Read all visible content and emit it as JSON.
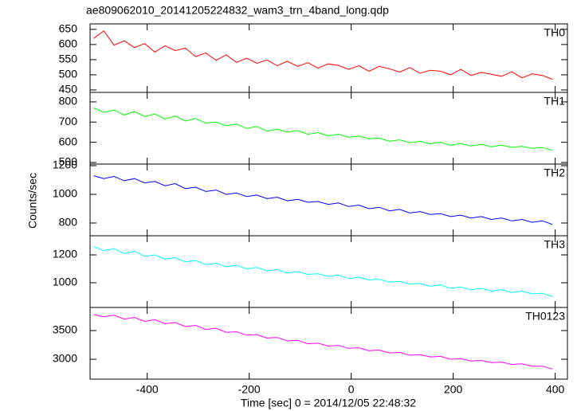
{
  "chart_data": {
    "type": "line",
    "title": "ae809062010_20141205224832_wam3_trn_4band_long.qdp",
    "x_label": "Time [sec] 0 = 2014/12/05 22:48:32",
    "y_label": "Counts/sec",
    "x": [
      -505,
      -485,
      -465,
      -445,
      -425,
      -405,
      -385,
      -365,
      -345,
      -325,
      -305,
      -285,
      -265,
      -245,
      -225,
      -205,
      -185,
      -165,
      -145,
      -125,
      -105,
      -85,
      -65,
      -45,
      -25,
      -5,
      15,
      35,
      55,
      75,
      95,
      115,
      135,
      155,
      175,
      195,
      215,
      235,
      255,
      275,
      295,
      315,
      335,
      355,
      375,
      395
    ],
    "xlim": [
      -512,
      424
    ],
    "xticks": [
      -400,
      -200,
      0,
      200,
      400
    ],
    "panels": [
      {
        "series": [
          {
            "name": "TH0",
            "color": "#ff0000",
            "values": [
              620,
              645,
              598,
              612,
              590,
              603,
              575,
              596,
              580,
              588,
              560,
              572,
              548,
              566,
              541,
              555,
              538,
              549,
              530,
              545,
              528,
              540,
              522,
              536,
              531,
              518,
              530,
              512,
              528,
              520,
              509,
              524,
              505,
              515,
              512,
              500,
              518,
              498,
              508,
              502,
              495,
              510,
              490,
              503,
              498,
              485
            ]
          }
        ],
        "ylim": [
          442,
          668
        ],
        "yticks": [
          450,
          500,
          550,
          600,
          650
        ]
      },
      {
        "series": [
          {
            "name": "TH1",
            "color": "#00ff00",
            "values": [
              770,
              748,
              760,
              735,
              752,
              728,
              740,
              715,
              730,
              705,
              718,
              695,
              700,
              682,
              690,
              668,
              678,
              655,
              665,
              650,
              658,
              640,
              648,
              632,
              640,
              625,
              630,
              618,
              620,
              605,
              612,
              598,
              605,
              592,
              600,
              585,
              594,
              582,
              590,
              578,
              586,
              575,
              580,
              570,
              574,
              560
            ]
          }
        ],
        "ylim": [
          492,
          847
        ],
        "yticks": [
          500,
          600,
          700,
          800
        ]
      },
      {
        "series": [
          {
            "name": "TH2",
            "color": "#0000ff",
            "values": [
              1130,
              1110,
              1125,
              1095,
              1110,
              1080,
              1090,
              1060,
              1075,
              1040,
              1050,
              1020,
              1030,
              1000,
              1010,
              985,
              995,
              970,
              980,
              955,
              965,
              945,
              950,
              930,
              940,
              915,
              925,
              900,
              910,
              885,
              895,
              870,
              880,
              860,
              865,
              845,
              855,
              835,
              845,
              825,
              835,
              815,
              825,
              805,
              815,
              790
            ]
          }
        ],
        "ylim": [
          711,
          1211
        ],
        "yticks": [
          800,
          1000,
          1200
        ]
      },
      {
        "series": [
          {
            "name": "TH3",
            "color": "#00ffff",
            "values": [
              1260,
              1230,
              1245,
              1210,
              1225,
              1190,
              1200,
              1170,
              1180,
              1150,
              1160,
              1130,
              1140,
              1115,
              1125,
              1100,
              1110,
              1085,
              1095,
              1070,
              1080,
              1060,
              1065,
              1045,
              1055,
              1030,
              1040,
              1020,
              1025,
              1005,
              1010,
              990,
              995,
              975,
              985,
              960,
              970,
              950,
              960,
              940,
              950,
              930,
              940,
              920,
              925,
              900
            ]
          }
        ],
        "ylim": [
          823,
          1337
        ],
        "yticks": [
          1000,
          1200
        ]
      },
      {
        "series": [
          {
            "name": "TH0123",
            "color": "#ff00ff",
            "values": [
              3780,
              3740,
              3770,
              3700,
              3730,
              3660,
              3690,
              3620,
              3640,
              3570,
              3590,
              3520,
              3540,
              3470,
              3480,
              3420,
              3430,
              3370,
              3380,
              3320,
              3330,
              3270,
              3280,
              3230,
              3240,
              3190,
              3200,
              3150,
              3160,
              3110,
              3120,
              3070,
              3080,
              3040,
              3050,
              3000,
              3010,
              2970,
              2980,
              2940,
              2950,
              2910,
              2920,
              2880,
              2880,
              2830
            ]
          }
        ],
        "ylim": [
          2653,
          3903
        ],
        "yticks": [
          3000,
          3500
        ]
      }
    ]
  }
}
